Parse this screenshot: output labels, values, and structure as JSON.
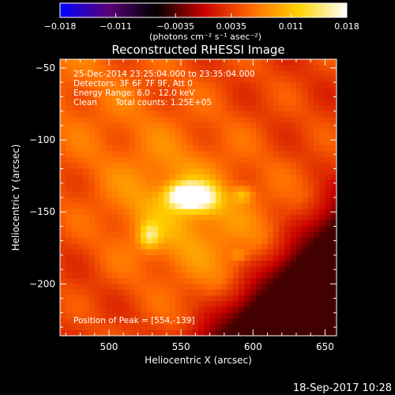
{
  "chart_data": {
    "type": "heatmap",
    "title": "Reconstructed RHESSI Image",
    "xlabel": "Heliocentric X (arcsec)",
    "ylabel": "Heliocentric Y (arcsec)",
    "xlim": [
      466,
      658
    ],
    "ylim": [
      -236,
      -44
    ],
    "xticks": [
      500,
      550,
      600,
      650
    ],
    "xtick_labels": [
      "500",
      "550",
      "600",
      "650"
    ],
    "yticks": [
      -50,
      -100,
      -150,
      -200
    ],
    "ytick_labels": [
      "−50",
      "−100",
      "−150",
      "−200"
    ],
    "colorbar": {
      "range": [
        -0.018,
        0.018
      ],
      "ticks": [
        -0.018,
        -0.011,
        -0.0035,
        0.0035,
        0.011,
        0.018
      ],
      "tick_labels": [
        "−0.018",
        "−0.011",
        "−0.0035",
        "0.0035",
        "0.011",
        "0.018"
      ],
      "units_label": "(photons cm⁻² s⁻¹ asec⁻²)",
      "colormap": [
        "#0000ff",
        "#5a007a",
        "#000000",
        "#c80000",
        "#ff6a00",
        "#ffd200",
        "#ffffff"
      ]
    },
    "annotations": {
      "time_range": "25-Dec-2014 23:25:04.000 to 23:35:04.000",
      "detectors": "Detectors: 3F 6F 7F 9F, Att 0",
      "energy": "Energy Range: 6.0 - 12.0 keV",
      "method": "Clean",
      "counts": "Total counts: 1.25E+05",
      "peak": "Position of Peak = [554,-139]"
    },
    "peak": [
      554,
      -139
    ],
    "sources": [
      {
        "x": 554,
        "y": -139,
        "sx": 9,
        "sy": 6,
        "v": 0.016
      },
      {
        "x": 568,
        "y": -141,
        "sx": 8,
        "sy": 7,
        "v": 0.006
      },
      {
        "x": 528,
        "y": -167,
        "sx": 5,
        "sy": 6,
        "v": 0.007
      },
      {
        "x": 593,
        "y": -138,
        "sx": 5,
        "sy": 4,
        "v": 0.005
      },
      {
        "x": 590,
        "y": -180,
        "sx": 4,
        "sy": 3,
        "v": 0.003
      },
      {
        "x": 545,
        "y": -152,
        "sx": 30,
        "sy": 28,
        "v": 0.004
      }
    ],
    "background_level": 0.0035,
    "negative_region_level": -0.004
  },
  "footer_timestamp": "18-Sep-2017 10:28"
}
